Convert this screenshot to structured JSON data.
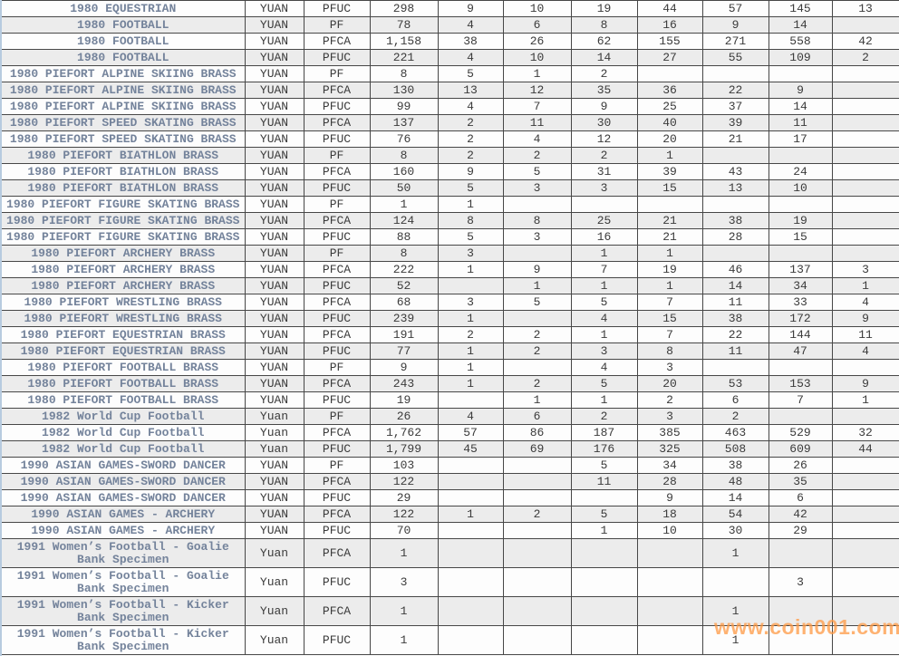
{
  "colors": {
    "description_text": "#74839b",
    "stripe_gray": "#ececec",
    "grid_line": "#474747",
    "watermark_orange": "#ff9a44"
  },
  "watermark": {
    "text": "www.coin001.com"
  },
  "table": {
    "rows": [
      {
        "cells": [
          "1980 EQUESTRIAN",
          "YUAN",
          "PFUC",
          "298",
          "9",
          "10",
          "19",
          "44",
          "57",
          "145",
          "13"
        ]
      },
      {
        "cells": [
          "1980 FOOTBALL",
          "YUAN",
          "PF",
          "78",
          "4",
          "6",
          "8",
          "16",
          "9",
          "14",
          ""
        ]
      },
      {
        "cells": [
          "1980 FOOTBALL",
          "YUAN",
          "PFCA",
          "1,158",
          "38",
          "26",
          "62",
          "155",
          "271",
          "558",
          "42"
        ]
      },
      {
        "cells": [
          "1980 FOOTBALL",
          "YUAN",
          "PFUC",
          "221",
          "4",
          "10",
          "14",
          "27",
          "55",
          "109",
          "2"
        ]
      },
      {
        "cells": [
          "1980 PIEFORT ALPINE SKIING BRASS",
          "YUAN",
          "PF",
          "8",
          "5",
          "1",
          "2",
          "",
          "",
          "",
          ""
        ]
      },
      {
        "cells": [
          "1980 PIEFORT ALPINE SKIING BRASS",
          "YUAN",
          "PFCA",
          "130",
          "13",
          "12",
          "35",
          "36",
          "22",
          "9",
          ""
        ]
      },
      {
        "cells": [
          "1980 PIEFORT ALPINE SKIING BRASS",
          "YUAN",
          "PFUC",
          "99",
          "4",
          "7",
          "9",
          "25",
          "37",
          "14",
          ""
        ]
      },
      {
        "cells": [
          "1980 PIEFORT SPEED SKATING BRASS",
          "YUAN",
          "PFCA",
          "137",
          "2",
          "11",
          "30",
          "40",
          "39",
          "11",
          ""
        ]
      },
      {
        "cells": [
          "1980 PIEFORT SPEED SKATING BRASS",
          "YUAN",
          "PFUC",
          "76",
          "2",
          "4",
          "12",
          "20",
          "21",
          "17",
          ""
        ]
      },
      {
        "cells": [
          "1980 PIEFORT BIATHLON BRASS",
          "YUAN",
          "PF",
          "8",
          "2",
          "2",
          "2",
          "1",
          "",
          "",
          ""
        ]
      },
      {
        "cells": [
          "1980 PIEFORT BIATHLON BRASS",
          "YUAN",
          "PFCA",
          "160",
          "9",
          "5",
          "31",
          "39",
          "43",
          "24",
          ""
        ]
      },
      {
        "cells": [
          "1980 PIEFORT BIATHLON BRASS",
          "YUAN",
          "PFUC",
          "50",
          "5",
          "3",
          "3",
          "15",
          "13",
          "10",
          ""
        ]
      },
      {
        "cells": [
          "1980 PIEFORT FIGURE SKATING BRASS",
          "YUAN",
          "PF",
          "1",
          "1",
          "",
          "",
          "",
          "",
          "",
          ""
        ]
      },
      {
        "cells": [
          "1980 PIEFORT FIGURE SKATING BRASS",
          "YUAN",
          "PFCA",
          "124",
          "8",
          "8",
          "25",
          "21",
          "38",
          "19",
          ""
        ]
      },
      {
        "cells": [
          "1980 PIEFORT FIGURE SKATING BRASS",
          "YUAN",
          "PFUC",
          "88",
          "5",
          "3",
          "16",
          "21",
          "28",
          "15",
          ""
        ]
      },
      {
        "cells": [
          "1980 PIEFORT ARCHERY BRASS",
          "YUAN",
          "PF",
          "8",
          "3",
          "",
          "1",
          "1",
          "",
          "",
          ""
        ]
      },
      {
        "cells": [
          "1980 PIEFORT ARCHERY BRASS",
          "YUAN",
          "PFCA",
          "222",
          "1",
          "9",
          "7",
          "19",
          "46",
          "137",
          "3"
        ]
      },
      {
        "cells": [
          "1980 PIEFORT ARCHERY BRASS",
          "YUAN",
          "PFUC",
          "52",
          "",
          "1",
          "1",
          "1",
          "14",
          "34",
          "1"
        ]
      },
      {
        "cells": [
          "1980 PIEFORT WRESTLING BRASS",
          "YUAN",
          "PFCA",
          "68",
          "3",
          "5",
          "5",
          "7",
          "11",
          "33",
          "4"
        ]
      },
      {
        "cells": [
          "1980 PIEFORT WRESTLING BRASS",
          "YUAN",
          "PFUC",
          "239",
          "1",
          "",
          "4",
          "15",
          "38",
          "172",
          "9"
        ]
      },
      {
        "cells": [
          "1980 PIEFORT EQUESTRIAN BRASS",
          "YUAN",
          "PFCA",
          "191",
          "2",
          "2",
          "1",
          "7",
          "22",
          "144",
          "11"
        ]
      },
      {
        "cells": [
          "1980 PIEFORT EQUESTRIAN BRASS",
          "YUAN",
          "PFUC",
          "77",
          "1",
          "2",
          "3",
          "8",
          "11",
          "47",
          "4"
        ]
      },
      {
        "cells": [
          "1980 PIEFORT FOOTBALL BRASS",
          "YUAN",
          "PF",
          "9",
          "1",
          "",
          "4",
          "3",
          "",
          "",
          ""
        ]
      },
      {
        "cells": [
          "1980 PIEFORT FOOTBALL BRASS",
          "YUAN",
          "PFCA",
          "243",
          "1",
          "2",
          "5",
          "20",
          "53",
          "153",
          "9"
        ]
      },
      {
        "cells": [
          "1980 PIEFORT FOOTBALL BRASS",
          "YUAN",
          "PFUC",
          "19",
          "",
          "1",
          "1",
          "2",
          "6",
          "7",
          "1"
        ]
      },
      {
        "cells": [
          "1982 World Cup Football",
          "Yuan",
          "PF",
          "26",
          "4",
          "6",
          "2",
          "3",
          "2",
          "",
          ""
        ]
      },
      {
        "cells": [
          "1982 World Cup Football",
          "Yuan",
          "PFCA",
          "1,762",
          "57",
          "86",
          "187",
          "385",
          "463",
          "529",
          "32"
        ]
      },
      {
        "cells": [
          "1982 World Cup Football",
          "Yuan",
          "PFUC",
          "1,799",
          "45",
          "69",
          "176",
          "325",
          "508",
          "609",
          "44"
        ]
      },
      {
        "cells": [
          "1990 ASIAN GAMES-SWORD DANCER",
          "YUAN",
          "PF",
          "103",
          "",
          "",
          "5",
          "34",
          "38",
          "26",
          ""
        ]
      },
      {
        "cells": [
          "1990 ASIAN GAMES-SWORD DANCER",
          "YUAN",
          "PFCA",
          "122",
          "",
          "",
          "11",
          "28",
          "48",
          "35",
          ""
        ]
      },
      {
        "cells": [
          "1990 ASIAN GAMES-SWORD DANCER",
          "YUAN",
          "PFUC",
          "29",
          "",
          "",
          "",
          "9",
          "14",
          "6",
          ""
        ]
      },
      {
        "cells": [
          "1990 ASIAN GAMES - ARCHERY",
          "YUAN",
          "PFCA",
          "122",
          "1",
          "2",
          "5",
          "18",
          "54",
          "42",
          ""
        ]
      },
      {
        "cells": [
          "1990 ASIAN GAMES - ARCHERY",
          "YUAN",
          "PFUC",
          "70",
          "",
          "",
          "1",
          "10",
          "30",
          "29",
          ""
        ]
      },
      {
        "cells": [
          "1991 Women’s Football - Goalie\nBank Specimen",
          "Yuan",
          "PFCA",
          "1",
          "",
          "",
          "",
          "",
          "1",
          "",
          ""
        ]
      },
      {
        "cells": [
          "1991 Women’s Football - Goalie\nBank Specimen",
          "Yuan",
          "PFUC",
          "3",
          "",
          "",
          "",
          "",
          "",
          "3",
          ""
        ]
      },
      {
        "cells": [
          "1991 Women’s Football - Kicker\nBank Specimen",
          "Yuan",
          "PFCA",
          "1",
          "",
          "",
          "",
          "",
          "1",
          "",
          ""
        ]
      },
      {
        "cells": [
          "1991 Women’s Football - Kicker\nBank Specimen",
          "Yuan",
          "PFUC",
          "1",
          "",
          "",
          "",
          "",
          "1",
          "",
          ""
        ]
      }
    ]
  }
}
